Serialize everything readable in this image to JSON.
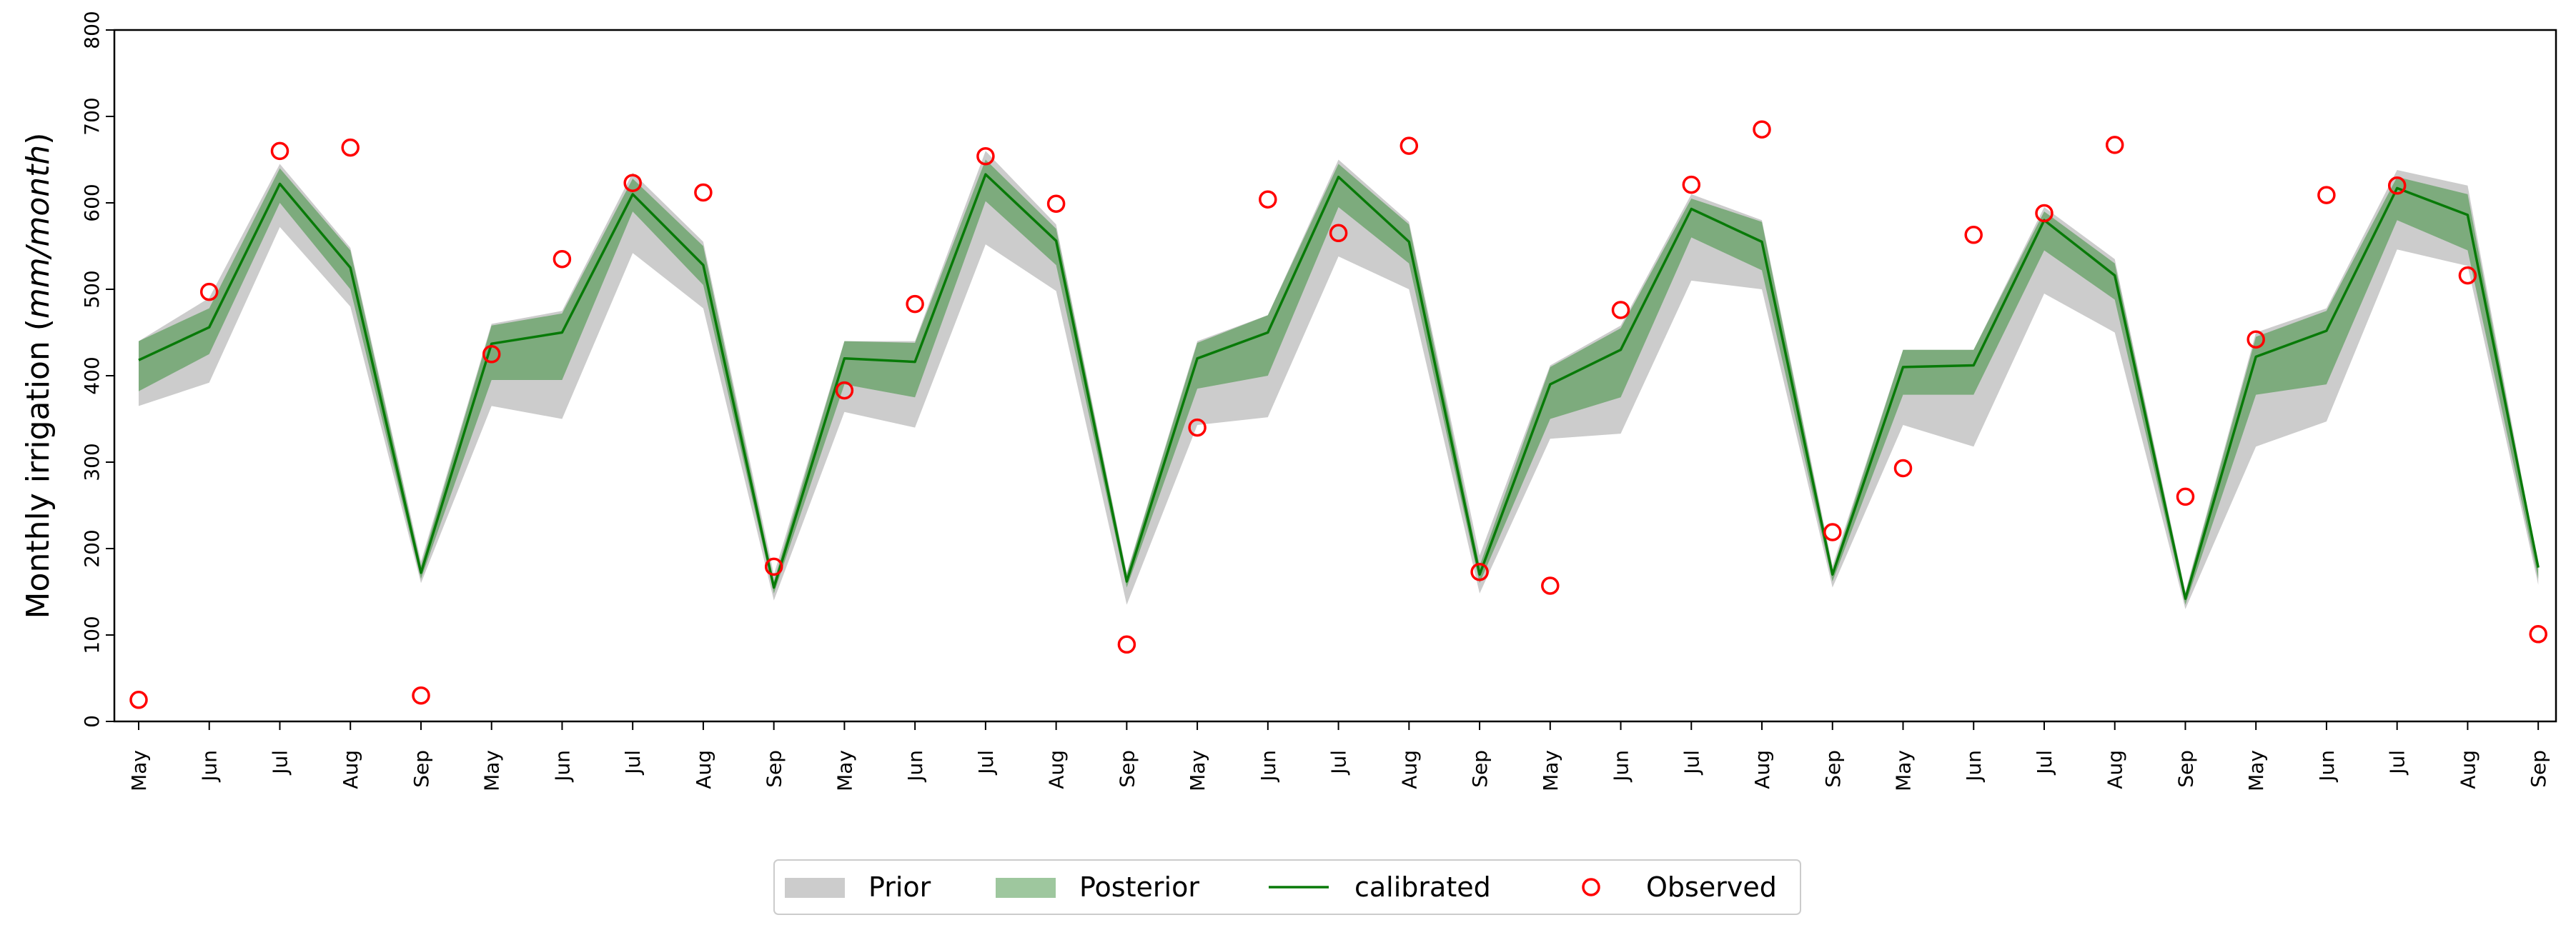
{
  "chart_data": {
    "type": "line",
    "ylabel_prefix": "Monthly irrigation (",
    "ylabel_unit": "mm/month",
    "ylabel_suffix": ")",
    "ylim": [
      0,
      800
    ],
    "yticks": [
      "0",
      "100",
      "200",
      "300",
      "400",
      "500",
      "600",
      "700",
      "800"
    ],
    "categories": [
      "May",
      "Jun",
      "Jul",
      "Aug",
      "Sep",
      "May",
      "Jun",
      "Jul",
      "Aug",
      "Sep",
      "May",
      "Jun",
      "Jul",
      "Aug",
      "Sep",
      "May",
      "Jun",
      "Jul",
      "Aug",
      "Sep",
      "May",
      "Jun",
      "Jul",
      "Aug",
      "Sep",
      "May",
      "Jun",
      "Jul",
      "Aug",
      "Sep",
      "May",
      "Jun",
      "Jul",
      "Aug",
      "Sep"
    ],
    "series": [
      {
        "name": "Prior",
        "lower": [
          365,
          392,
          572,
          480,
          160,
          365,
          350,
          542,
          478,
          140,
          358,
          340,
          552,
          498,
          135,
          343,
          352,
          538,
          500,
          148,
          327,
          333,
          510,
          500,
          155,
          343,
          318,
          495,
          450,
          130,
          318,
          347,
          546,
          527,
          158
        ],
        "upper": [
          440,
          490,
          645,
          548,
          185,
          460,
          475,
          635,
          555,
          170,
          440,
          440,
          660,
          575,
          172,
          440,
          470,
          650,
          578,
          192,
          412,
          458,
          610,
          580,
          180,
          430,
          430,
          595,
          535,
          150,
          450,
          478,
          638,
          620,
          180
        ]
      },
      {
        "name": "Posterior",
        "lower": [
          382,
          425,
          600,
          500,
          165,
          395,
          395,
          590,
          505,
          148,
          390,
          375,
          602,
          528,
          155,
          385,
          400,
          595,
          530,
          160,
          350,
          375,
          560,
          522,
          162,
          378,
          378,
          545,
          488,
          135,
          378,
          390,
          580,
          545,
          165
        ],
        "upper": [
          440,
          478,
          640,
          545,
          180,
          458,
          472,
          628,
          550,
          162,
          440,
          438,
          650,
          570,
          170,
          438,
          470,
          645,
          575,
          180,
          410,
          455,
          605,
          578,
          175,
          430,
          430,
          590,
          530,
          148,
          445,
          475,
          630,
          610,
          178
        ]
      },
      {
        "name": "calibrated",
        "values": [
          418,
          456,
          622,
          525,
          172,
          437,
          450,
          610,
          528,
          155,
          420,
          416,
          633,
          556,
          162,
          420,
          450,
          630,
          555,
          170,
          390,
          430,
          593,
          555,
          170,
          410,
          412,
          580,
          516,
          142,
          422,
          452,
          617,
          586,
          178
        ]
      },
      {
        "name": "Observed",
        "values": [
          25,
          497,
          660,
          664,
          30,
          425,
          535,
          623,
          612,
          179,
          383,
          483,
          654,
          599,
          89,
          340,
          604,
          565,
          666,
          173,
          157,
          476,
          621,
          685,
          219,
          293,
          563,
          588,
          667,
          260,
          442,
          609,
          620,
          516,
          101
        ]
      }
    ],
    "legend": {
      "position": "bottom-center",
      "labels": [
        "Prior",
        "Posterior",
        "calibrated",
        "Observed"
      ]
    }
  },
  "colors": {
    "prior": "#cccccc",
    "posterior": "#3d8f3d",
    "calibrated": "#087a08",
    "observed": "#ff0000",
    "axis": "#000000"
  }
}
